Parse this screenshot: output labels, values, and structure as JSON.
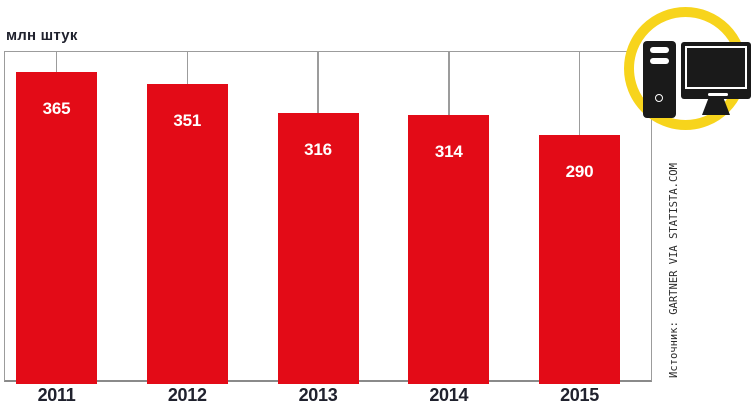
{
  "chart_data": {
    "type": "bar",
    "title": "млн штук",
    "unit_label": "млн штук",
    "categories": [
      "2011",
      "2012",
      "2013",
      "2014",
      "2015"
    ],
    "values": [
      365,
      351,
      316,
      314,
      290
    ],
    "value_labels": [
      "365",
      "351",
      "316",
      "314",
      "290"
    ],
    "xlabel": "",
    "ylabel": "млн штук",
    "ylim": [
      0,
      390
    ],
    "grid": false,
    "legend": false,
    "droplines_from_top_frame": true,
    "source": "Источник: GARTNER VIA STATISTA.COM",
    "bar_color": "#e30b17",
    "label_color": "#ffffff",
    "axis_text_color": "#20222e",
    "frame_line_color": "#9c9c9c"
  },
  "icon": {
    "name": "desktop-computer-icon",
    "ring_color": "#f7d41c",
    "glyph_color": "#1a1a1a",
    "background": "#ffffff"
  }
}
